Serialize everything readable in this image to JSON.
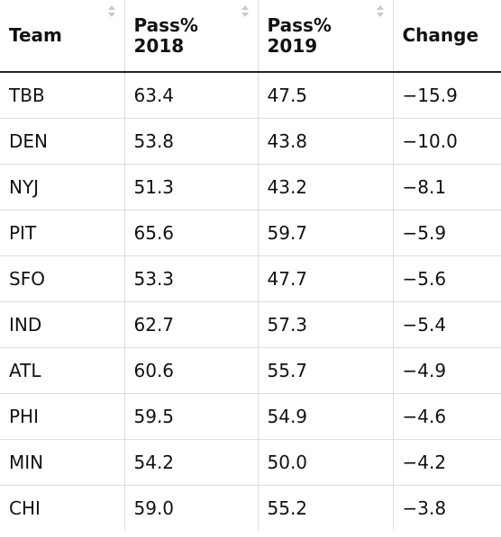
{
  "table": {
    "columns": [
      {
        "label_line1": "Team",
        "label_line2": ""
      },
      {
        "label_line1": "Pass%",
        "label_line2": "2018"
      },
      {
        "label_line1": "Pass%",
        "label_line2": "2019"
      },
      {
        "label_line1": "Change",
        "label_line2": ""
      }
    ],
    "sortable_columns": [
      0,
      1,
      2
    ],
    "rows": [
      {
        "team": "TBB",
        "p2018": "63.4",
        "p2019": "47.5",
        "change": "−15.9"
      },
      {
        "team": "DEN",
        "p2018": "53.8",
        "p2019": "43.8",
        "change": "−10.0"
      },
      {
        "team": "NYJ",
        "p2018": "51.3",
        "p2019": "43.2",
        "change": "−8.1"
      },
      {
        "team": "PIT",
        "p2018": "65.6",
        "p2019": "59.7",
        "change": "−5.9"
      },
      {
        "team": "SFO",
        "p2018": "53.3",
        "p2019": "47.7",
        "change": "−5.6"
      },
      {
        "team": "IND",
        "p2018": "62.7",
        "p2019": "57.3",
        "change": "−5.4"
      },
      {
        "team": "ATL",
        "p2018": "60.6",
        "p2019": "55.7",
        "change": "−4.9"
      },
      {
        "team": "PHI",
        "p2018": "59.5",
        "p2019": "54.9",
        "change": "−4.6"
      },
      {
        "team": "MIN",
        "p2018": "54.2",
        "p2019": "50.0",
        "change": "−4.2"
      },
      {
        "team": "CHI",
        "p2018": "59.0",
        "p2019": "55.2",
        "change": "−3.8"
      }
    ]
  },
  "icons": {
    "sort": "sort-both-icon"
  },
  "colors": {
    "header_rule": "#222222",
    "grid": "#dddddd",
    "sort_icon": "#c8c8c8"
  }
}
